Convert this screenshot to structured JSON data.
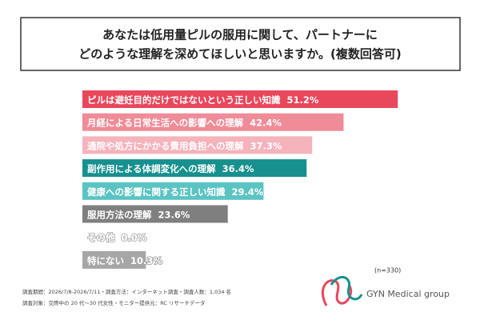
{
  "chart_data": {
    "type": "bar",
    "orientation": "horizontal",
    "title": [
      "あなたは低用量ピルの服用に関して、パートナーに",
      "どのような理解を深めてほしいと思いますか。(複数回答可)"
    ],
    "categories": [
      "ピルは避妊目的だけではないという正しい知識",
      "月経による日常生活への影響への理解",
      "通院や処方にかかる費用負担への理解",
      "副作用による体調変化への理解",
      "健康への影響に関する正しい知識",
      "服用方法の理解",
      "その他",
      "特にない"
    ],
    "values": [
      51.2,
      42.4,
      37.3,
      36.4,
      29.4,
      23.6,
      0.0,
      10.3
    ],
    "value_labels": [
      "51.2%",
      "42.4%",
      "37.3%",
      "36.4%",
      "29.4%",
      "23.6%",
      "0.0%",
      "10.3%"
    ],
    "colors": [
      "#e9475c",
      "#f08b98",
      "#f5b3bc",
      "#17908f",
      "#5cc3c3",
      "#7f7f7f",
      "#b4b4b4",
      "#a6a6a6"
    ],
    "sample_note": "(n=330)"
  },
  "notes": [
    "調査期間：2026/7/8-2026/7/11・調査方法：インターネット調査・調査人数：1,034 名",
    "調査対象：交際中の 20 代〜30 代女性・モニター提供元：RC リサーチデータ"
  ],
  "logo": "GYN Medical group"
}
